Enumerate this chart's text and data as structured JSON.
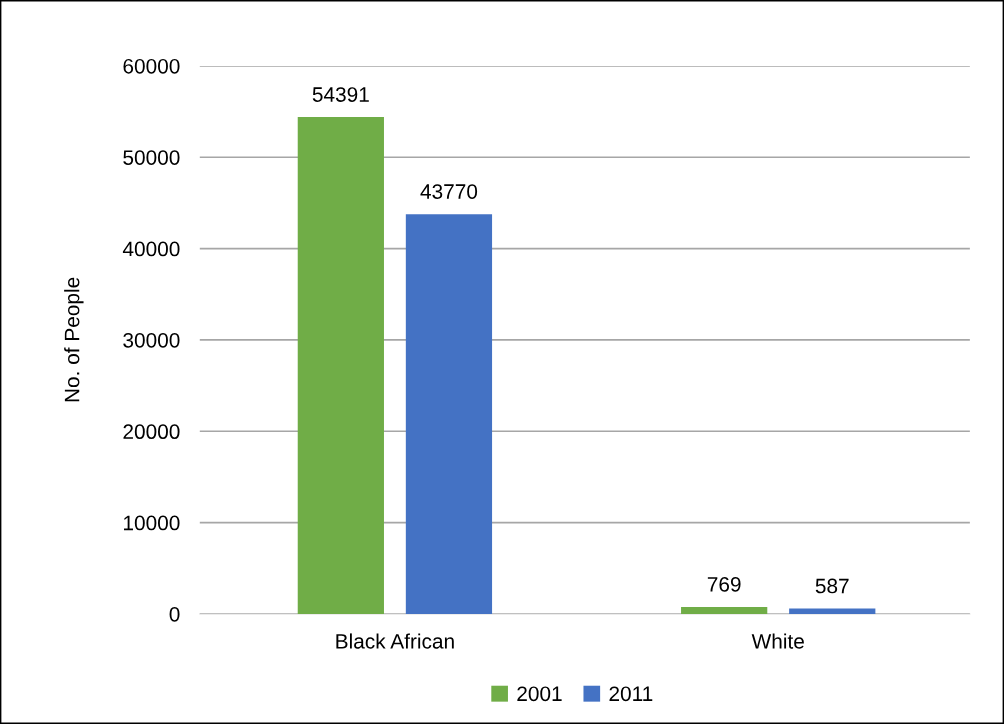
{
  "chart_data": {
    "type": "bar",
    "ylabel": "No. of People",
    "categories": [
      "Black African",
      "White"
    ],
    "series": [
      {
        "name": "2001",
        "color": "#70ad47",
        "values": [
          54391,
          769
        ]
      },
      {
        "name": "2011",
        "color": "#4472c4",
        "values": [
          43770,
          587
        ]
      }
    ],
    "ylim": [
      0,
      60000
    ],
    "yticks": [
      0,
      10000,
      20000,
      30000,
      40000,
      50000,
      60000
    ],
    "grid": "y",
    "legend": "bottom",
    "data_labels": true
  }
}
